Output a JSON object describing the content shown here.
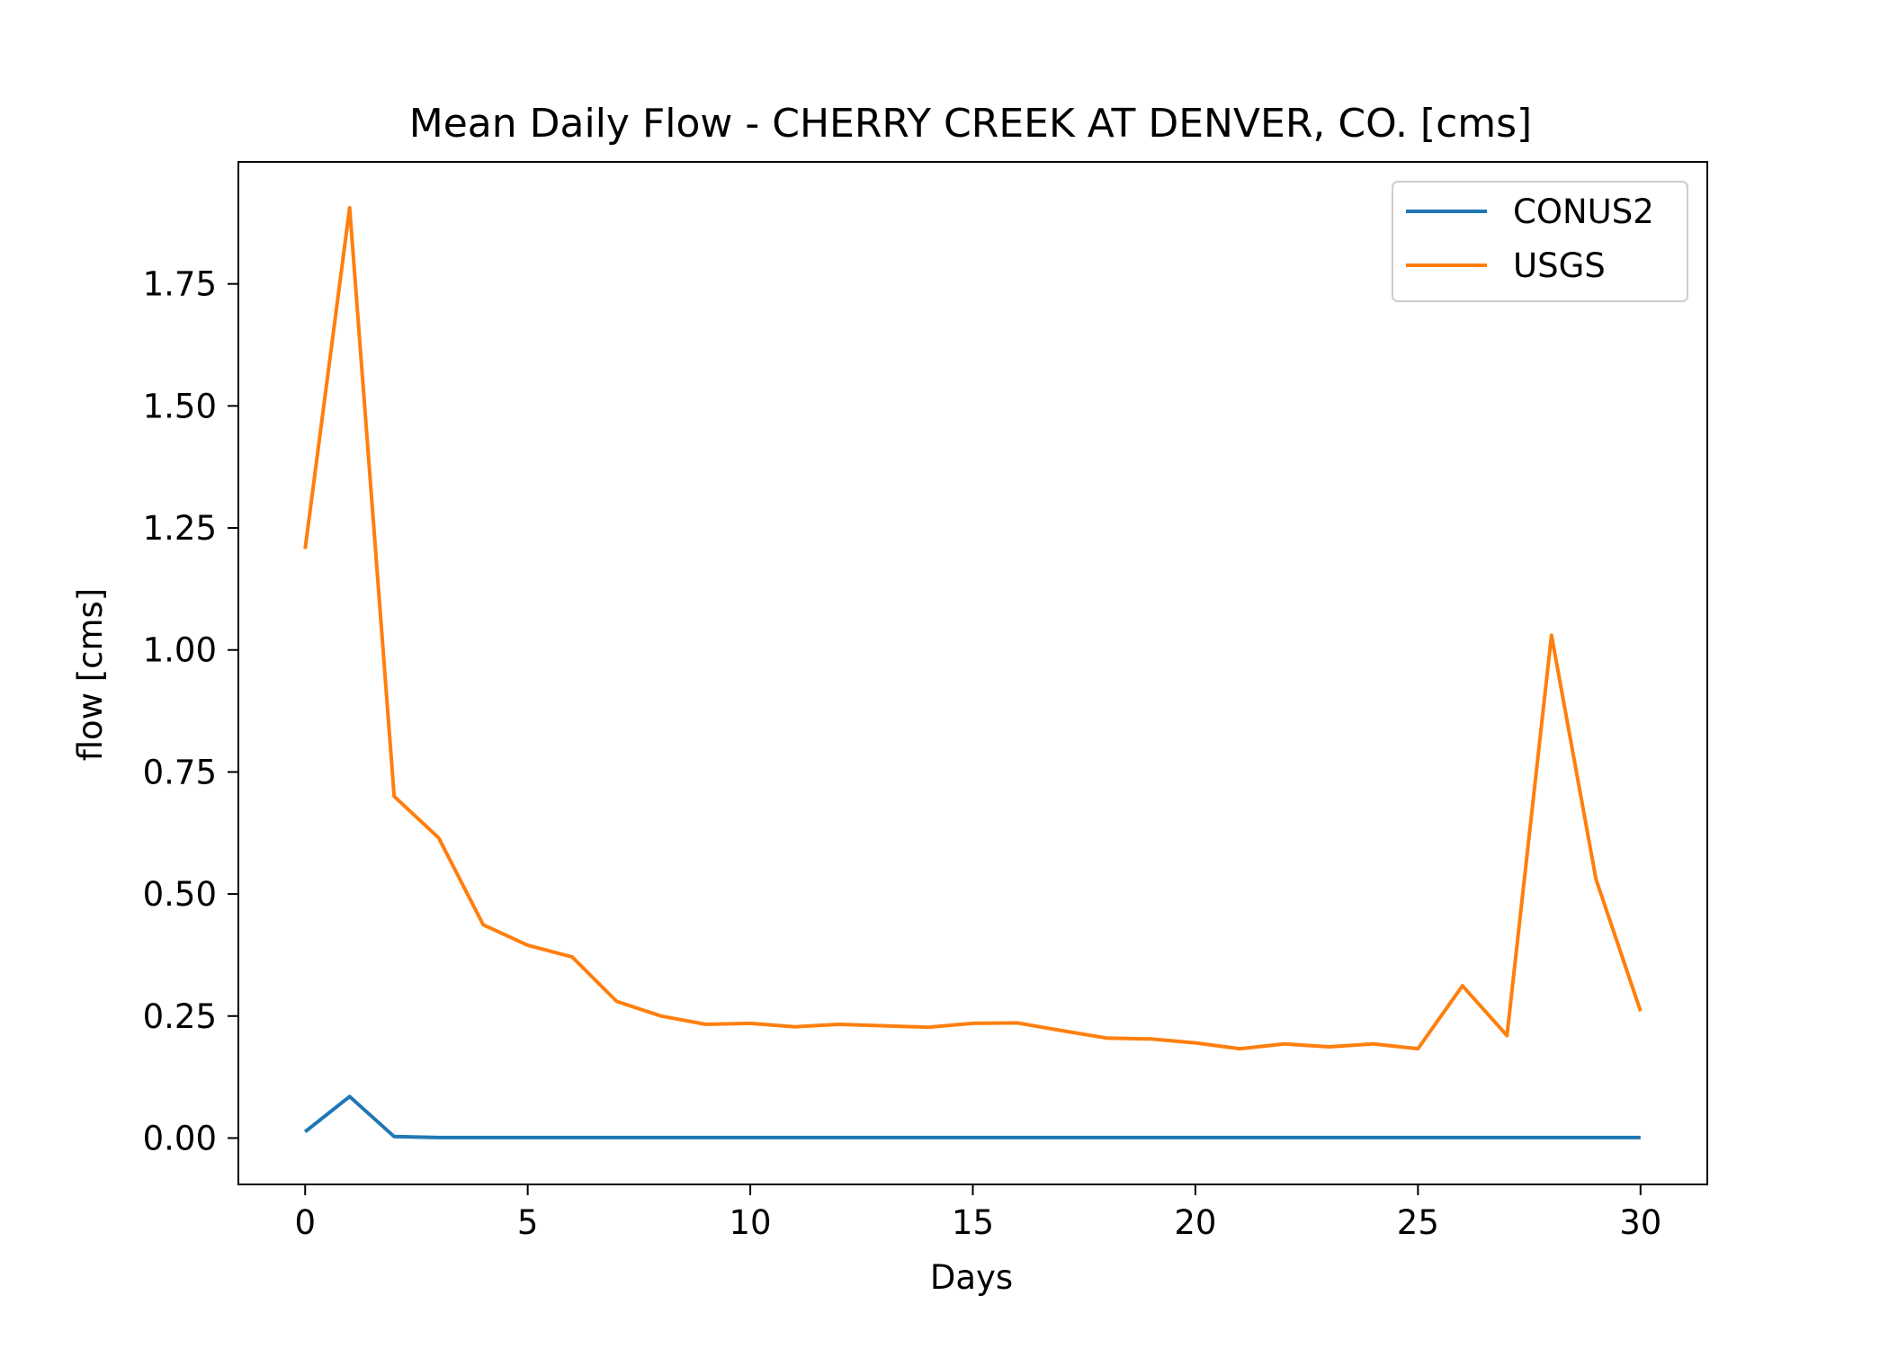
{
  "chart_data": {
    "type": "line",
    "title": "Mean Daily Flow - CHERRY CREEK AT DENVER, CO. [cms]",
    "xlabel": "Days",
    "ylabel": "flow [cms]",
    "xlim": [
      -1.5,
      31.5
    ],
    "ylim": [
      -0.095,
      2.0
    ],
    "xticks": [
      0,
      5,
      10,
      15,
      20,
      25,
      30
    ],
    "yticks": [
      0.0,
      0.25,
      0.5,
      0.75,
      1.0,
      1.25,
      1.5,
      1.75
    ],
    "xtick_labels": [
      "0",
      "5",
      "10",
      "15",
      "20",
      "25",
      "30"
    ],
    "ytick_labels": [
      "0.00",
      "0.25",
      "0.50",
      "0.75",
      "1.00",
      "1.25",
      "1.50",
      "1.75"
    ],
    "grid": false,
    "legend_position": "top-right",
    "x": [
      0,
      1,
      2,
      3,
      4,
      5,
      6,
      7,
      8,
      9,
      10,
      11,
      12,
      13,
      14,
      15,
      16,
      17,
      18,
      19,
      20,
      21,
      22,
      23,
      24,
      25,
      26,
      27,
      28,
      29,
      30
    ],
    "series": [
      {
        "name": "CONUS2",
        "color": "#1f77b4",
        "values": [
          0.013,
          0.085,
          0.003,
          0.001,
          0.001,
          0.001,
          0.001,
          0.001,
          0.001,
          0.001,
          0.001,
          0.001,
          0.001,
          0.001,
          0.001,
          0.001,
          0.001,
          0.001,
          0.001,
          0.001,
          0.001,
          0.001,
          0.001,
          0.001,
          0.001,
          0.001,
          0.001,
          0.001,
          0.001,
          0.001,
          0.001
        ]
      },
      {
        "name": "USGS",
        "color": "#ff7f0e",
        "values": [
          1.207,
          1.906,
          0.7,
          0.615,
          0.437,
          0.395,
          0.371,
          0.28,
          0.25,
          0.233,
          0.235,
          0.228,
          0.233,
          0.23,
          0.227,
          0.235,
          0.236,
          0.22,
          0.205,
          0.203,
          0.195,
          0.183,
          0.193,
          0.187,
          0.193,
          0.183,
          0.312,
          0.21,
          1.03,
          0.53,
          0.26
        ]
      }
    ]
  }
}
